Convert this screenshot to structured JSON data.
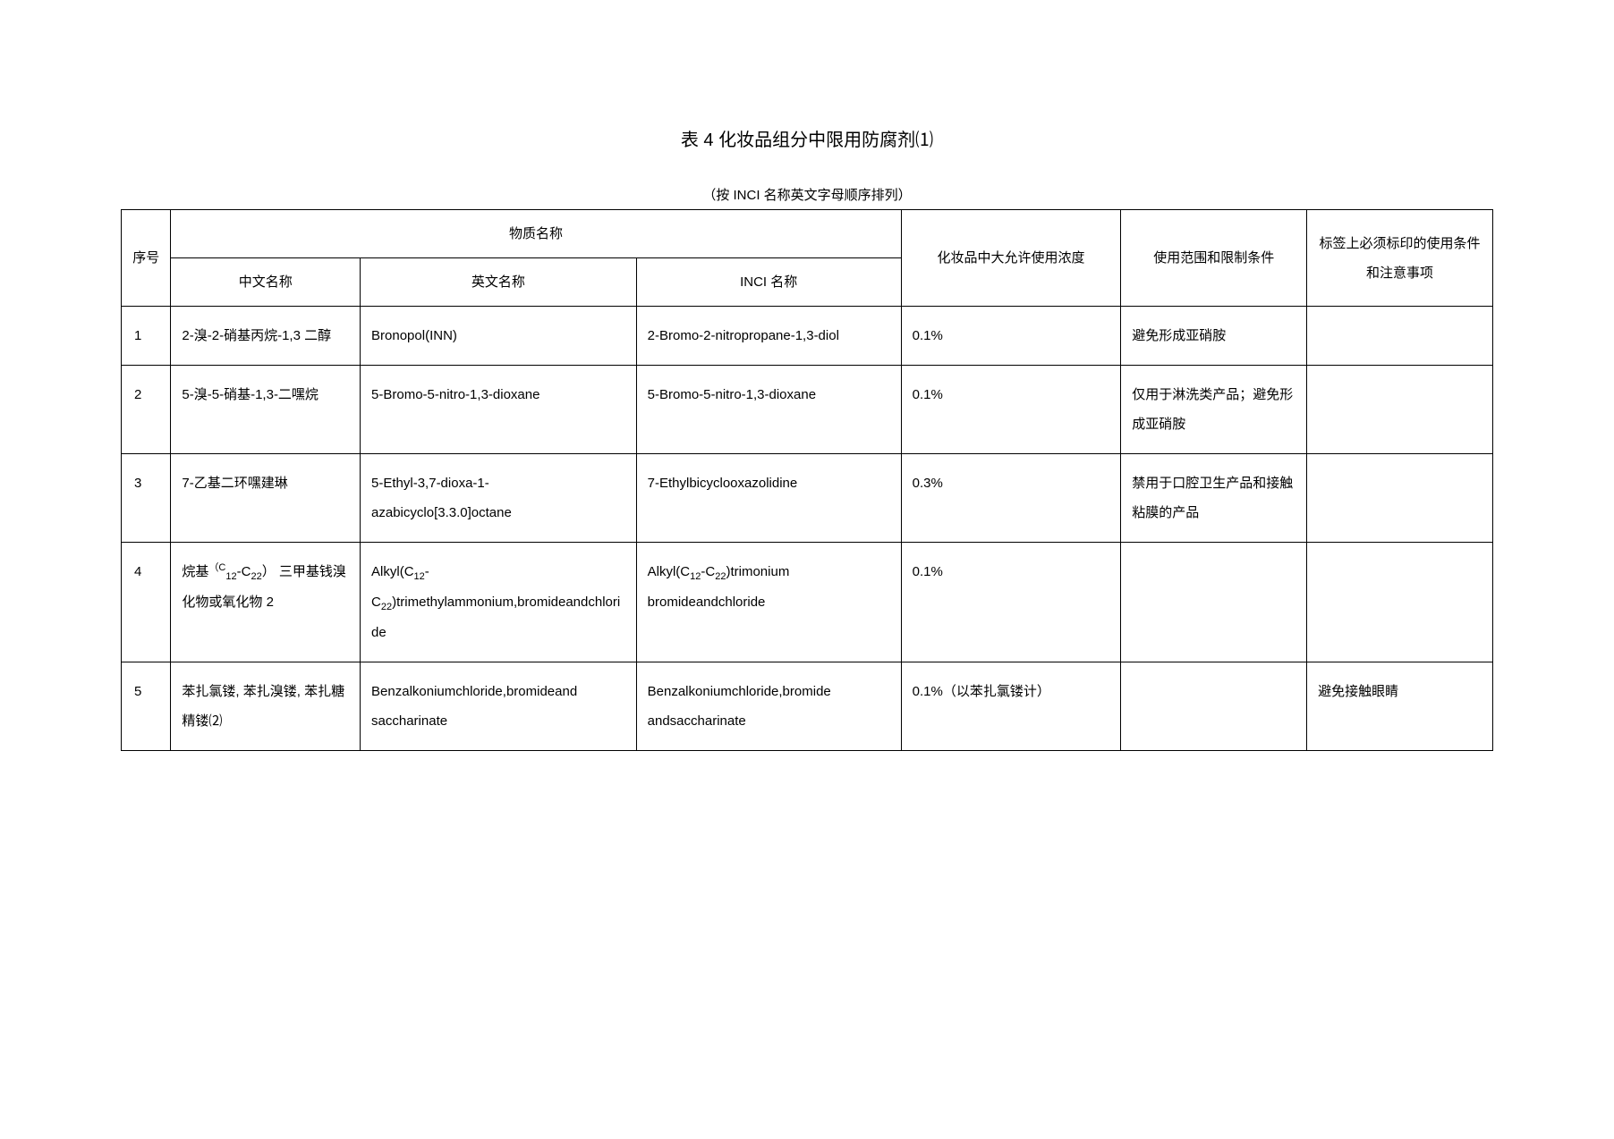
{
  "title": "表 4 化妆品组分中限用防腐剂⑴",
  "subtitle": "（按 INCI 名称英文字母顺序排列）",
  "headers": {
    "seq": "序号",
    "substance": "物质名称",
    "cn": "中文名称",
    "en": "英文名称",
    "inci": "INCI 名称",
    "conc": "化妆品中大允许使用浓度",
    "cond": "使用范围和限制条件",
    "label": "标签上必须标印的使用条件和注意事项"
  },
  "rows": [
    {
      "idx": "1",
      "cn": "2-溴-2-硝基丙烷-1,3 二醇",
      "en": "Bronopol(INN)",
      "inci": "2-Bromo-2-nitropropane-1,3-diol",
      "conc": "0.1%",
      "cond": "避免形成亚硝胺",
      "label": ""
    },
    {
      "idx": "2",
      "cn": "5-溴-5-硝基-1,3-二嘿烷",
      "en": "5-Bromo-5-nitro-1,3-dioxane",
      "inci": "5-Bromo-5-nitro-1,3-dioxane",
      "conc": "0.1%",
      "cond": "仅用于淋洗类产品；避免形成亚硝胺",
      "label": ""
    },
    {
      "idx": "3",
      "cn": "7-乙基二环嘿建琳",
      "en": "5-Ethyl-3,7-dioxa-1-azabicyclo[3.3.0]octane",
      "inci": "7-Ethylbicyclooxazolidine",
      "conc": "0.3%",
      "cond": "禁用于口腔卫生产品和接触粘膜的产品",
      "label": ""
    },
    {
      "idx": "4",
      "cn_html": "烷基<sup>（C</sup><sub>12</sub>-C<sub>22</sub>） 三甲基钱溴化物或氧化物 2",
      "en_html": "Alkyl(C<sub>12</sub>-C<sub>22</sub>)trimethylammonium,bromideandchloride",
      "inci_html": "Alkyl(C<sub>12</sub>-C<sub>22</sub>)trimonium bromideandchloride",
      "conc": "0.1%",
      "cond": "",
      "label": ""
    },
    {
      "idx": "5",
      "cn": "苯扎氯镂, 苯扎溴镂, 苯扎糖精镂⑵",
      "en": "Benzalkoniumchloride,bromideand saccharinate",
      "inci": "Benzalkoniumchloride,bromide andsaccharinate",
      "conc": "0.1%（以苯扎氯镂计）",
      "cond": "",
      "label": "避免接触眼睛"
    }
  ]
}
